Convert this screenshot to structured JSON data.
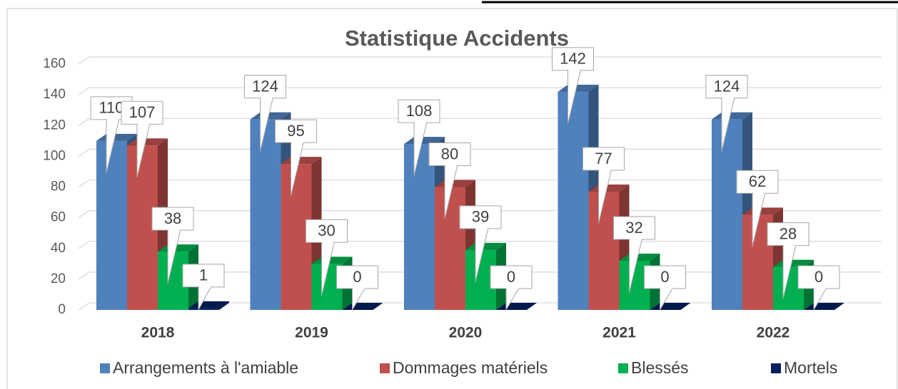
{
  "chart_data": {
    "type": "bar3d",
    "title": "Statistique Accidents",
    "categories": [
      "2018",
      "2019",
      "2020",
      "2021",
      "2022"
    ],
    "series": [
      {
        "name": "Arrangements à l'amiable",
        "color": "#4f81bd",
        "values": [
          110,
          124,
          108,
          142,
          124
        ]
      },
      {
        "name": "Dommages matériels",
        "color": "#c0504d",
        "values": [
          107,
          95,
          80,
          77,
          62
        ]
      },
      {
        "name": "Blessés",
        "color": "#00b050",
        "values": [
          38,
          30,
          39,
          32,
          28
        ]
      },
      {
        "name": "Mortels",
        "color": "#002060",
        "values": [
          1,
          0,
          0,
          0,
          0
        ]
      }
    ],
    "ylim": [
      0,
      160
    ],
    "yticks": [
      0,
      20,
      40,
      60,
      80,
      100,
      120,
      140,
      160
    ],
    "grid": true,
    "legend": "bottom"
  }
}
